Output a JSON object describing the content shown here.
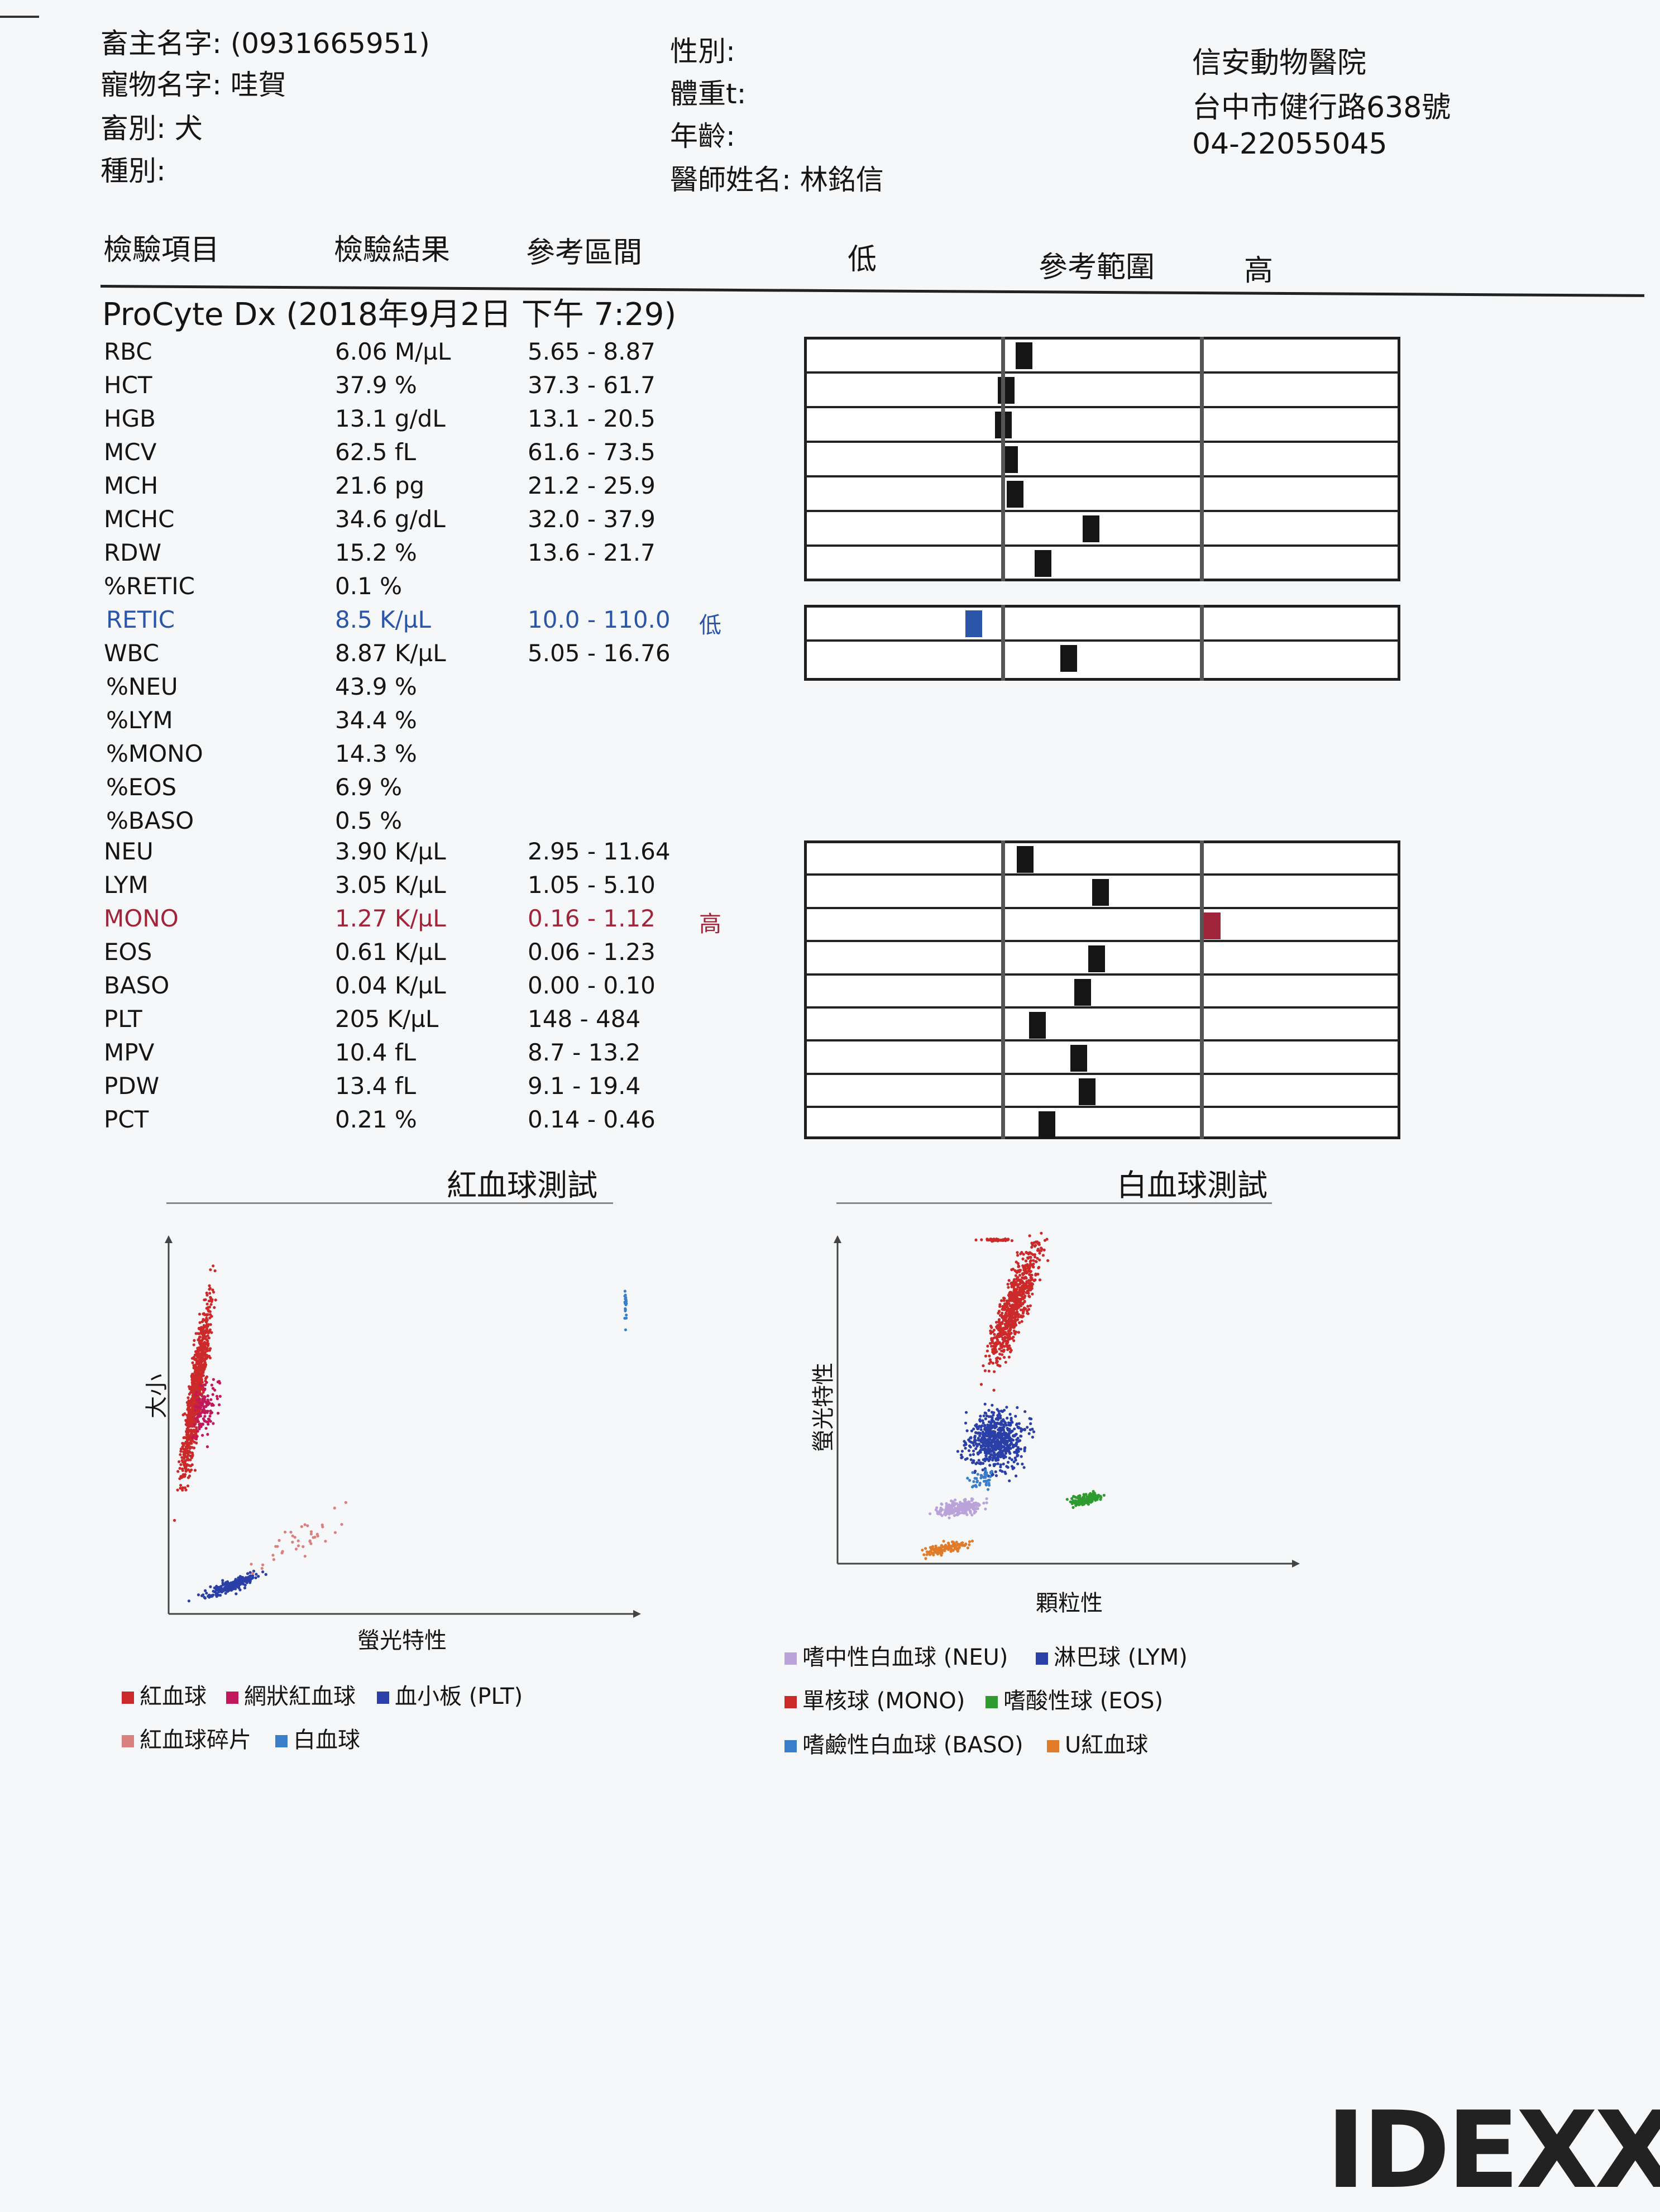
{
  "patient": {
    "owner_label": "畜主名字:",
    "owner_value": "(0931665951)",
    "pet_label": "寵物名字:",
    "pet_value": "哇賀",
    "species_label": "畜別:",
    "species_value": "犬",
    "breed_label": "種別:",
    "sex_label": "性別:",
    "weight_label": "體重t:",
    "age_label": "年齡:",
    "vet_label": "醫師姓名:",
    "vet_value": "林銘信"
  },
  "clinic": {
    "name": "信安動物醫院",
    "address": "台中市健行路638號",
    "phone": "04-22055045"
  },
  "columns": {
    "item": "檢驗項目",
    "result": "檢驗結果",
    "range": "參考區間",
    "low": "低",
    "chart": "參考範圍",
    "high": "高"
  },
  "instrument_title": "ProCyte Dx (2018年9月2日 下午 7:29)",
  "results": [
    {
      "name": "RBC",
      "value": "6.06 M/µL",
      "range": "5.65 - 8.87",
      "flag": "",
      "marker": 0.105,
      "status": "normal"
    },
    {
      "name": "HCT",
      "value": "37.9 %",
      "range": "37.3 - 61.7",
      "flag": "",
      "marker": 0.015,
      "status": "normal"
    },
    {
      "name": "HGB",
      "value": "13.1 g/dL",
      "range": "13.1 - 20.5",
      "flag": "",
      "marker": 0.0,
      "status": "normal"
    },
    {
      "name": "MCV",
      "value": "62.5 fL",
      "range": "61.6 - 73.5",
      "flag": "",
      "marker": 0.03,
      "status": "normal"
    },
    {
      "name": "MCH",
      "value": "21.6 pg",
      "range": "21.2 - 25.9",
      "flag": "",
      "marker": 0.06,
      "status": "normal"
    },
    {
      "name": "MCHC",
      "value": "34.6 g/dL",
      "range": "32.0 - 37.9",
      "flag": "",
      "marker": 0.44,
      "status": "normal"
    },
    {
      "name": "RDW",
      "value": "15.2 %",
      "range": "13.6 - 21.7",
      "flag": "",
      "marker": 0.2,
      "status": "normal"
    },
    {
      "name": "%RETIC",
      "value": "0.1 %",
      "range": "",
      "flag": "",
      "status": "none"
    },
    {
      "name": "RETIC",
      "value": "8.5 K/µL",
      "range": "10.0 - 110.0",
      "flag": "低",
      "marker": -0.15,
      "status": "low"
    },
    {
      "name": "WBC",
      "value": "8.87 K/µL",
      "range": "5.05 - 16.76",
      "flag": "",
      "marker": 0.33,
      "status": "normal"
    },
    {
      "name": "%NEU",
      "value": "43.9 %",
      "range": "",
      "flag": "",
      "status": "none"
    },
    {
      "name": "%LYM",
      "value": "34.4 %",
      "range": "",
      "flag": "",
      "status": "none"
    },
    {
      "name": "%MONO",
      "value": "14.3 %",
      "range": "",
      "flag": "",
      "status": "none"
    },
    {
      "name": "%EOS",
      "value": "6.9 %",
      "range": "",
      "flag": "",
      "status": "none"
    },
    {
      "name": "%BASO",
      "value": "0.5 %",
      "range": "",
      "flag": "",
      "status": "none"
    },
    {
      "name": "NEU",
      "value": "3.90 K/µL",
      "range": "2.95 - 11.64",
      "flag": "",
      "marker": 0.11,
      "status": "normal"
    },
    {
      "name": "LYM",
      "value": "3.05 K/µL",
      "range": "1.05 - 5.10",
      "flag": "",
      "marker": 0.49,
      "status": "normal"
    },
    {
      "name": "MONO",
      "value": "1.27 K/µL",
      "range": "0.16 - 1.12",
      "flag": "高",
      "marker": 1.05,
      "status": "high"
    },
    {
      "name": "EOS",
      "value": "0.61 K/µL",
      "range": "0.06 - 1.23",
      "flag": "",
      "marker": 0.47,
      "status": "normal"
    },
    {
      "name": "BASO",
      "value": "0.04 K/µL",
      "range": "0.00 - 0.10",
      "flag": "",
      "marker": 0.4,
      "status": "normal"
    },
    {
      "name": "PLT",
      "value": "205 K/µL",
      "range": "148 - 484",
      "flag": "",
      "marker": 0.17,
      "status": "normal"
    },
    {
      "name": "MPV",
      "value": "10.4 fL",
      "range": "8.7 - 13.2",
      "flag": "",
      "marker": 0.38,
      "status": "normal"
    },
    {
      "name": "PDW",
      "value": "13.4 fL",
      "range": "9.1 - 19.4",
      "flag": "",
      "marker": 0.42,
      "status": "normal"
    },
    {
      "name": "PCT",
      "value": "0.21 %",
      "range": "0.14 - 0.46",
      "flag": "",
      "marker": 0.22,
      "status": "normal"
    }
  ],
  "rbc_chart": {
    "title": "紅血球測試",
    "y_label": "大小",
    "x_label": "螢光特性",
    "legend": [
      {
        "label": "紅血球",
        "color": "#cc2a2a"
      },
      {
        "label": "網狀紅血球",
        "color": "#c2185b"
      },
      {
        "label": "血小板 (PLT)",
        "color": "#2a3fa8"
      },
      {
        "label": "紅血球碎片",
        "color": "#d98080"
      },
      {
        "label": "白血球",
        "color": "#3a7ec9"
      }
    ]
  },
  "wbc_chart": {
    "title": "白血球測試",
    "y_label": "螢光特性",
    "x_label": "顆粒性",
    "legend": [
      {
        "label": "嗜中性白血球 (NEU)",
        "color": "#b9a3d9"
      },
      {
        "label": "淋巴球 (LYM)",
        "color": "#2a3fa8"
      },
      {
        "label": "單核球 (MONO)",
        "color": "#cc2a2a"
      },
      {
        "label": "嗜酸性球 (EOS)",
        "color": "#2e9b2e"
      },
      {
        "label": "嗜鹼性白血球 (BASO)",
        "color": "#3a7ec9"
      },
      {
        "label": "U紅血球",
        "color": "#e07b2a"
      }
    ]
  },
  "colors": {
    "low": "#2a55a8",
    "high": "#a0243a",
    "normal_marker": "#151515"
  },
  "logo": "IDEXX"
}
